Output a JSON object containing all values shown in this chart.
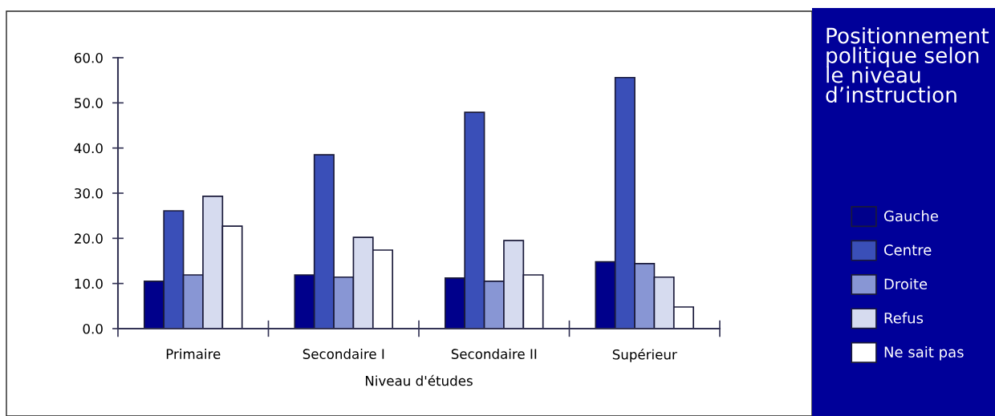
{
  "chart_data": {
    "type": "bar",
    "title": "Positionnement\npolitique selon\nle niveau\nd’instruction",
    "xlabel": "Niveau d'études",
    "categories": [
      "Primaire",
      "Secondaire I",
      "Secondaire II",
      "Supérieur"
    ],
    "series": [
      {
        "name": "Gauche",
        "color": "#00008b",
        "values": [
          10.5,
          11.9,
          11.2,
          14.8
        ]
      },
      {
        "name": "Centre",
        "color": "#3a4fb8",
        "values": [
          26.1,
          38.5,
          47.9,
          55.6
        ]
      },
      {
        "name": "Droite",
        "color": "#8896d4",
        "values": [
          11.9,
          11.4,
          10.5,
          14.4
        ]
      },
      {
        "name": "Refus",
        "color": "#d6dbef",
        "values": [
          29.3,
          20.2,
          19.5,
          11.4
        ]
      },
      {
        "name": "Ne sait pas",
        "color": "#ffffff",
        "values": [
          22.7,
          17.4,
          11.9,
          4.8
        ]
      }
    ],
    "ylim": [
      0,
      60
    ],
    "yticks": [
      {
        "value": 0,
        "label": "0.0"
      },
      {
        "value": 10,
        "label": "10.0"
      },
      {
        "value": 20,
        "label": "20.0"
      },
      {
        "value": 30,
        "label": "30.0"
      },
      {
        "value": 40,
        "label": "40.0"
      },
      {
        "value": 50,
        "label": "50.0"
      },
      {
        "value": 60,
        "label": "60.0"
      }
    ],
    "grid": false,
    "legend": "right"
  }
}
